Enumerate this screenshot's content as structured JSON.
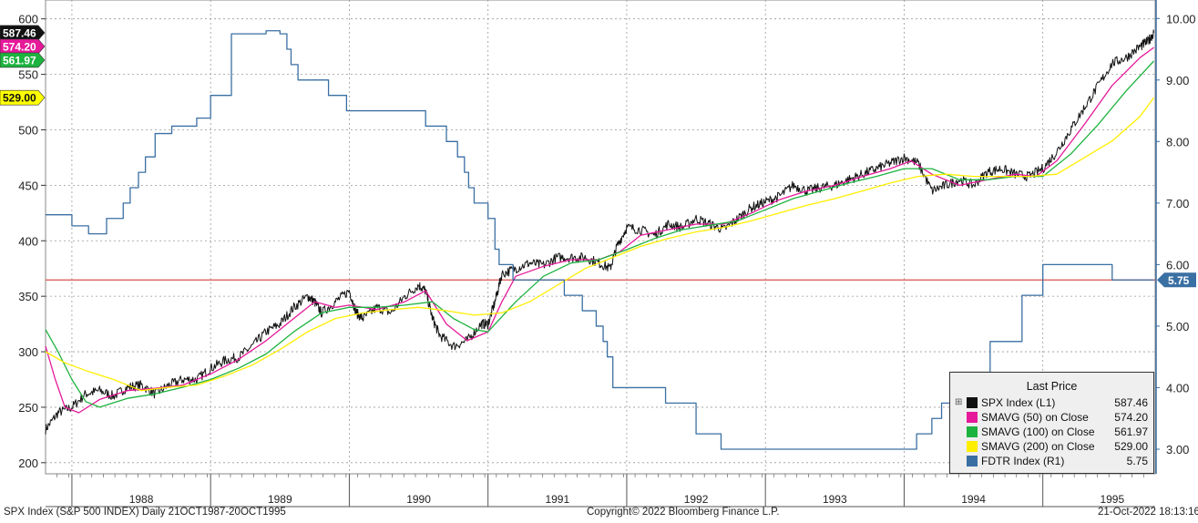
{
  "chart_data": {
    "type": "line",
    "x_tick_labels": [
      "1988",
      "1989",
      "1990",
      "1991",
      "1992",
      "1993",
      "1994",
      "1995"
    ],
    "y_left_ticks": [
      200,
      250,
      300,
      350,
      400,
      450,
      500,
      550,
      600
    ],
    "y_right_ticks": [
      "3.00",
      "4.00",
      "5.00",
      "6.00",
      "7.00",
      "8.00",
      "9.00",
      "10.00"
    ],
    "y_left_range": [
      190,
      617
    ],
    "y_right_range": [
      2.6,
      10.3
    ],
    "x_range": [
      1987.81,
      1995.81
    ],
    "reference_line": {
      "axis": "right",
      "value": 5.75,
      "color": "#d9534f"
    },
    "grid": true,
    "legend_placement": "bottom-right",
    "legend_title": "Last Price",
    "left_value_labels": [
      {
        "text": "587.46",
        "value": 587.46,
        "bg": "#111111",
        "fg": "#ffffff"
      },
      {
        "text": "574.20",
        "value": 574.2,
        "bg": "#e6199a",
        "fg": "#ffffff"
      },
      {
        "text": "561.97",
        "value": 561.97,
        "bg": "#1db33f",
        "fg": "#ffffff"
      },
      {
        "text": "529.00",
        "value": 529.0,
        "bg": "#ffff00",
        "fg": "#111111"
      }
    ],
    "right_value_label": {
      "text": "5.75",
      "value": 5.75,
      "bg": "#3a6fa3",
      "fg": "#ffffff"
    },
    "series": [
      {
        "name": "SPX Index (L1)",
        "legend_value": "587.46",
        "color": "#111111",
        "axis": "left",
        "noisy": true,
        "points": [
          [
            1987.81,
            230
          ],
          [
            1987.9,
            245
          ],
          [
            1988.0,
            250
          ],
          [
            1988.1,
            262
          ],
          [
            1988.2,
            265
          ],
          [
            1988.3,
            260
          ],
          [
            1988.4,
            268
          ],
          [
            1988.5,
            270
          ],
          [
            1988.6,
            262
          ],
          [
            1988.7,
            270
          ],
          [
            1988.8,
            275
          ],
          [
            1988.9,
            275
          ],
          [
            1989.0,
            285
          ],
          [
            1989.1,
            292
          ],
          [
            1989.2,
            295
          ],
          [
            1989.3,
            305
          ],
          [
            1989.4,
            318
          ],
          [
            1989.5,
            325
          ],
          [
            1989.6,
            340
          ],
          [
            1989.7,
            350
          ],
          [
            1989.75,
            345
          ],
          [
            1989.8,
            335
          ],
          [
            1989.9,
            345
          ],
          [
            1990.0,
            355
          ],
          [
            1990.05,
            335
          ],
          [
            1990.1,
            330
          ],
          [
            1990.2,
            340
          ],
          [
            1990.3,
            335
          ],
          [
            1990.4,
            350
          ],
          [
            1990.5,
            360
          ],
          [
            1990.55,
            355
          ],
          [
            1990.6,
            330
          ],
          [
            1990.65,
            315
          ],
          [
            1990.75,
            305
          ],
          [
            1990.85,
            310
          ],
          [
            1990.95,
            325
          ],
          [
            1991.0,
            325
          ],
          [
            1991.05,
            345
          ],
          [
            1991.1,
            370
          ],
          [
            1991.2,
            375
          ],
          [
            1991.3,
            380
          ],
          [
            1991.4,
            378
          ],
          [
            1991.5,
            385
          ],
          [
            1991.6,
            385
          ],
          [
            1991.7,
            385
          ],
          [
            1991.8,
            380
          ],
          [
            1991.88,
            375
          ],
          [
            1991.93,
            395
          ],
          [
            1992.0,
            412
          ],
          [
            1992.1,
            410
          ],
          [
            1992.2,
            405
          ],
          [
            1992.3,
            415
          ],
          [
            1992.4,
            412
          ],
          [
            1992.5,
            420
          ],
          [
            1992.6,
            415
          ],
          [
            1992.7,
            410
          ],
          [
            1992.8,
            420
          ],
          [
            1992.9,
            430
          ],
          [
            1993.0,
            435
          ],
          [
            1993.1,
            440
          ],
          [
            1993.2,
            450
          ],
          [
            1993.3,
            445
          ],
          [
            1993.4,
            448
          ],
          [
            1993.5,
            450
          ],
          [
            1993.6,
            455
          ],
          [
            1993.7,
            460
          ],
          [
            1993.8,
            465
          ],
          [
            1993.9,
            470
          ],
          [
            1994.0,
            475
          ],
          [
            1994.1,
            470
          ],
          [
            1994.2,
            445
          ],
          [
            1994.3,
            450
          ],
          [
            1994.4,
            455
          ],
          [
            1994.5,
            450
          ],
          [
            1994.6,
            462
          ],
          [
            1994.7,
            465
          ],
          [
            1994.8,
            460
          ],
          [
            1994.9,
            458
          ],
          [
            1995.0,
            465
          ],
          [
            1995.1,
            480
          ],
          [
            1995.2,
            500
          ],
          [
            1995.3,
            520
          ],
          [
            1995.4,
            540
          ],
          [
            1995.5,
            560
          ],
          [
            1995.6,
            565
          ],
          [
            1995.7,
            575
          ],
          [
            1995.76,
            580
          ],
          [
            1995.8,
            587.46
          ]
        ]
      },
      {
        "name": "SMAVG (50)  on Close",
        "legend_value": "574.20",
        "color": "#e6199a",
        "axis": "left",
        "points": [
          [
            1987.81,
            305
          ],
          [
            1987.88,
            275
          ],
          [
            1987.95,
            250
          ],
          [
            1988.05,
            245
          ],
          [
            1988.2,
            257
          ],
          [
            1988.4,
            265
          ],
          [
            1988.6,
            267
          ],
          [
            1988.8,
            270
          ],
          [
            1989.0,
            280
          ],
          [
            1989.2,
            293
          ],
          [
            1989.4,
            310
          ],
          [
            1989.6,
            330
          ],
          [
            1989.75,
            345
          ],
          [
            1989.9,
            340
          ],
          [
            1990.0,
            342
          ],
          [
            1990.2,
            338
          ],
          [
            1990.4,
            345
          ],
          [
            1990.55,
            355
          ],
          [
            1990.7,
            325
          ],
          [
            1990.85,
            310
          ],
          [
            1991.0,
            318
          ],
          [
            1991.1,
            345
          ],
          [
            1991.2,
            368
          ],
          [
            1991.4,
            377
          ],
          [
            1991.6,
            383
          ],
          [
            1991.8,
            383
          ],
          [
            1991.95,
            390
          ],
          [
            1992.1,
            405
          ],
          [
            1992.3,
            410
          ],
          [
            1992.5,
            415
          ],
          [
            1992.7,
            415
          ],
          [
            1992.9,
            425
          ],
          [
            1993.1,
            437
          ],
          [
            1993.3,
            445
          ],
          [
            1993.5,
            450
          ],
          [
            1993.7,
            458
          ],
          [
            1993.9,
            465
          ],
          [
            1994.05,
            472
          ],
          [
            1994.2,
            460
          ],
          [
            1994.4,
            450
          ],
          [
            1994.6,
            455
          ],
          [
            1994.8,
            460
          ],
          [
            1994.95,
            458
          ],
          [
            1995.1,
            472
          ],
          [
            1995.3,
            505
          ],
          [
            1995.5,
            540
          ],
          [
            1995.7,
            565
          ],
          [
            1995.8,
            574.2
          ]
        ]
      },
      {
        "name": "SMAVG (100)  on Close",
        "legend_value": "561.97",
        "color": "#1db33f",
        "axis": "left",
        "points": [
          [
            1987.81,
            320
          ],
          [
            1987.9,
            300
          ],
          [
            1988.0,
            275
          ],
          [
            1988.1,
            255
          ],
          [
            1988.2,
            250
          ],
          [
            1988.4,
            258
          ],
          [
            1988.6,
            262
          ],
          [
            1988.8,
            268
          ],
          [
            1989.0,
            275
          ],
          [
            1989.2,
            285
          ],
          [
            1989.4,
            298
          ],
          [
            1989.6,
            318
          ],
          [
            1989.8,
            335
          ],
          [
            1990.0,
            340
          ],
          [
            1990.2,
            340
          ],
          [
            1990.4,
            342
          ],
          [
            1990.6,
            345
          ],
          [
            1990.75,
            330
          ],
          [
            1990.9,
            320
          ],
          [
            1991.0,
            318
          ],
          [
            1991.2,
            345
          ],
          [
            1991.4,
            368
          ],
          [
            1991.6,
            380
          ],
          [
            1991.8,
            383
          ],
          [
            1992.0,
            392
          ],
          [
            1992.2,
            402
          ],
          [
            1992.4,
            410
          ],
          [
            1992.6,
            414
          ],
          [
            1992.8,
            418
          ],
          [
            1993.0,
            428
          ],
          [
            1993.2,
            438
          ],
          [
            1993.4,
            445
          ],
          [
            1993.6,
            452
          ],
          [
            1993.8,
            458
          ],
          [
            1994.0,
            465
          ],
          [
            1994.2,
            465
          ],
          [
            1994.4,
            455
          ],
          [
            1994.6,
            455
          ],
          [
            1994.8,
            458
          ],
          [
            1995.0,
            458
          ],
          [
            1995.2,
            478
          ],
          [
            1995.4,
            505
          ],
          [
            1995.6,
            535
          ],
          [
            1995.8,
            561.97
          ]
        ]
      },
      {
        "name": "SMAVG (200)  on Close",
        "legend_value": "529.00",
        "color": "#ffee00",
        "axis": "left",
        "points": [
          [
            1987.81,
            300
          ],
          [
            1987.95,
            290
          ],
          [
            1988.1,
            283
          ],
          [
            1988.3,
            275
          ],
          [
            1988.5,
            265
          ],
          [
            1988.7,
            268
          ],
          [
            1988.9,
            270
          ],
          [
            1989.1,
            278
          ],
          [
            1989.3,
            288
          ],
          [
            1989.5,
            302
          ],
          [
            1989.7,
            318
          ],
          [
            1989.9,
            330
          ],
          [
            1990.1,
            335
          ],
          [
            1990.3,
            338
          ],
          [
            1990.5,
            340
          ],
          [
            1990.7,
            337
          ],
          [
            1990.9,
            333
          ],
          [
            1991.1,
            335
          ],
          [
            1991.3,
            345
          ],
          [
            1991.5,
            360
          ],
          [
            1991.7,
            375
          ],
          [
            1991.9,
            385
          ],
          [
            1992.1,
            395
          ],
          [
            1992.3,
            402
          ],
          [
            1992.5,
            408
          ],
          [
            1992.7,
            412
          ],
          [
            1992.9,
            418
          ],
          [
            1993.1,
            425
          ],
          [
            1993.3,
            432
          ],
          [
            1993.5,
            438
          ],
          [
            1993.7,
            445
          ],
          [
            1993.9,
            452
          ],
          [
            1994.1,
            458
          ],
          [
            1994.3,
            460
          ],
          [
            1994.5,
            458
          ],
          [
            1994.7,
            458
          ],
          [
            1994.9,
            458
          ],
          [
            1995.1,
            460
          ],
          [
            1995.3,
            475
          ],
          [
            1995.5,
            490
          ],
          [
            1995.7,
            512
          ],
          [
            1995.8,
            529
          ]
        ]
      },
      {
        "name": "FDTR Index  (R1)",
        "legend_value": "5.75",
        "color": "#3a6fa3",
        "axis": "right",
        "step": true,
        "points": [
          [
            1987.81,
            6.81
          ],
          [
            1988.0,
            6.63
          ],
          [
            1988.12,
            6.5
          ],
          [
            1988.25,
            6.75
          ],
          [
            1988.37,
            7.0
          ],
          [
            1988.42,
            7.25
          ],
          [
            1988.48,
            7.5
          ],
          [
            1988.53,
            7.75
          ],
          [
            1988.6,
            8.13
          ],
          [
            1988.72,
            8.25
          ],
          [
            1988.9,
            8.38
          ],
          [
            1989.0,
            8.75
          ],
          [
            1989.15,
            9.75
          ],
          [
            1989.4,
            9.8
          ],
          [
            1989.5,
            9.75
          ],
          [
            1989.55,
            9.5
          ],
          [
            1989.58,
            9.25
          ],
          [
            1989.63,
            9.0
          ],
          [
            1989.85,
            8.75
          ],
          [
            1989.98,
            8.5
          ],
          [
            1990.55,
            8.25
          ],
          [
            1990.7,
            8.0
          ],
          [
            1990.78,
            7.75
          ],
          [
            1990.83,
            7.5
          ],
          [
            1990.86,
            7.25
          ],
          [
            1990.9,
            7.0
          ],
          [
            1991.0,
            6.75
          ],
          [
            1991.05,
            6.25
          ],
          [
            1991.08,
            6.0
          ],
          [
            1991.18,
            5.75
          ],
          [
            1991.35,
            5.75
          ],
          [
            1991.55,
            5.5
          ],
          [
            1991.68,
            5.25
          ],
          [
            1991.78,
            5.0
          ],
          [
            1991.83,
            4.75
          ],
          [
            1991.86,
            4.5
          ],
          [
            1991.9,
            4.0
          ],
          [
            1992.2,
            4.0
          ],
          [
            1992.28,
            3.75
          ],
          [
            1992.5,
            3.25
          ],
          [
            1992.68,
            3.0
          ],
          [
            1993.0,
            3.0
          ],
          [
            1994.09,
            3.25
          ],
          [
            1994.2,
            3.5
          ],
          [
            1994.27,
            3.75
          ],
          [
            1994.35,
            4.25
          ],
          [
            1994.45,
            4.25
          ],
          [
            1994.62,
            4.75
          ],
          [
            1994.85,
            5.5
          ],
          [
            1995.0,
            6.0
          ],
          [
            1995.4,
            6.0
          ],
          [
            1995.5,
            5.75
          ],
          [
            1995.8,
            5.75
          ]
        ]
      }
    ]
  },
  "legend_plus": "⊞",
  "footer": {
    "left": "SPX Index (S&P 500 INDEX)  Daily 21OCT1987-20OCT1995",
    "center": "Copyright© 2022 Bloomberg Finance L.P.",
    "right": "21-Oct-2022 18:13:16"
  }
}
